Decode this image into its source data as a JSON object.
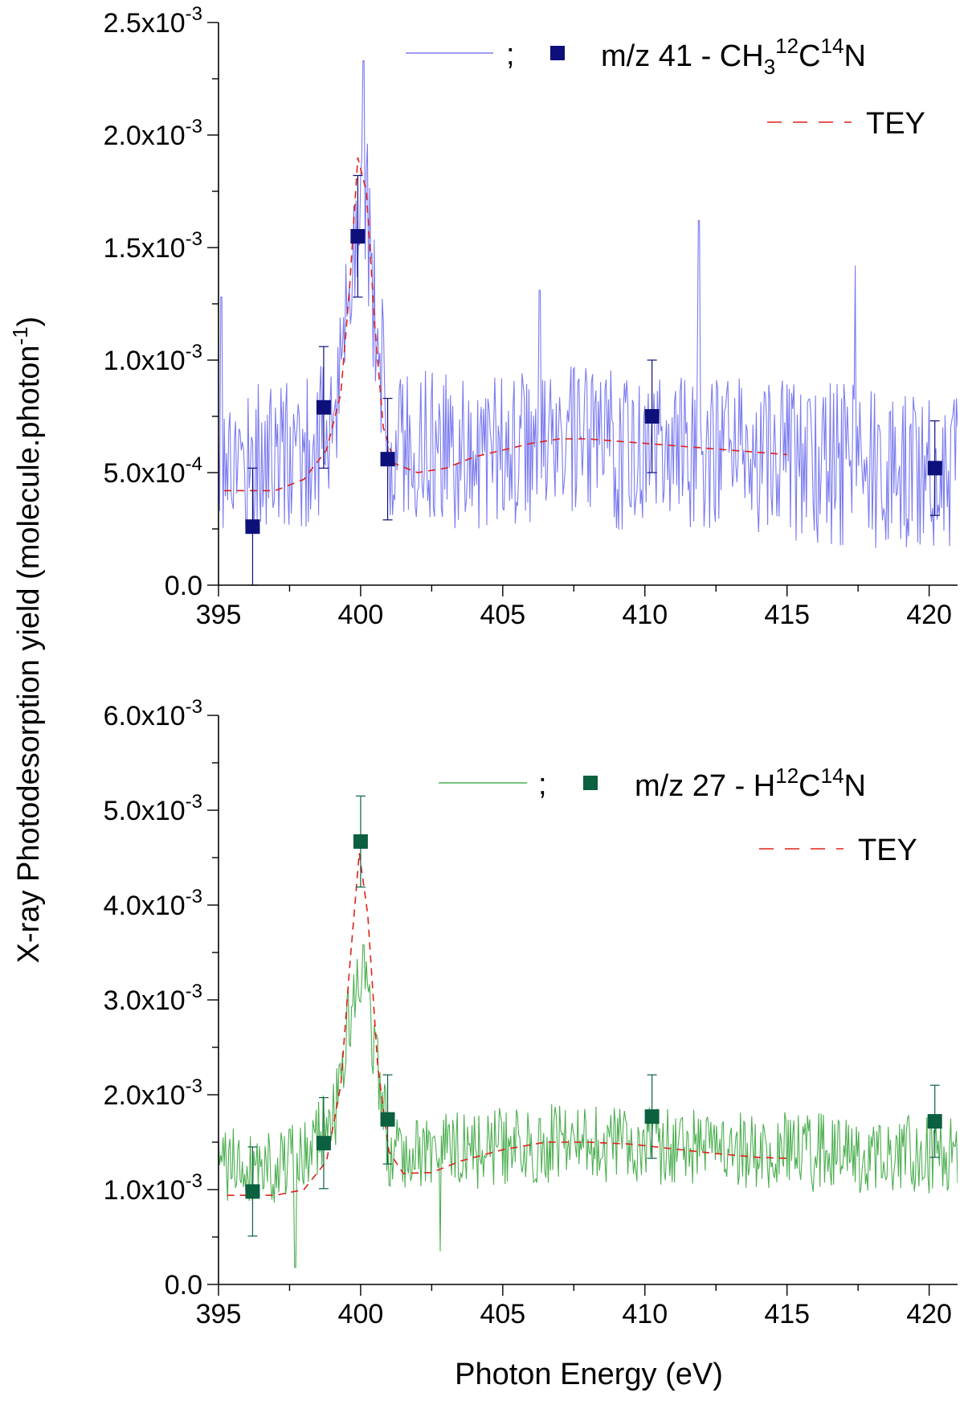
{
  "shared": {
    "ylabel": "X-ray Photodesorption yield (molecule.photon",
    "ylabel_sup": "-1",
    "ylabel_close": ")",
    "xlabel": "Photon Energy (eV)"
  },
  "chart_data": [
    {
      "type": "line",
      "xlim": [
        395,
        421
      ],
      "ylim": [
        0,
        0.0025
      ],
      "x_ticks": [
        395,
        400,
        405,
        410,
        415,
        420
      ],
      "x_tick_labels": [
        "395",
        "400",
        "405",
        "410",
        "415",
        "420"
      ],
      "y_ticks": [
        {
          "value": 0,
          "base": "0.0",
          "exp": ""
        },
        {
          "value": 0.0005,
          "base": "5.0x10",
          "exp": "-4"
        },
        {
          "value": 0.001,
          "base": "1.0x10",
          "exp": "-3"
        },
        {
          "value": 0.0015,
          "base": "1.5x10",
          "exp": "-3"
        },
        {
          "value": 0.002,
          "base": "2.0x10",
          "exp": "-3"
        },
        {
          "value": 0.0025,
          "base": "2.5x10",
          "exp": "-3"
        }
      ],
      "legend_position": "top-right",
      "legend": {
        "separator": ";",
        "parts": [
          {
            "text": "m/z 41 - CH",
            "script": ""
          },
          {
            "text": "3",
            "script": "sub"
          },
          {
            "text": "12",
            "script": "sup"
          },
          {
            "text": "C",
            "script": ""
          },
          {
            "text": "14",
            "script": "sup"
          },
          {
            "text": "N",
            "script": ""
          }
        ],
        "tey_label": "TEY"
      },
      "colors": {
        "signal_line": "#7b7bf0",
        "marker": "#0d0f7a",
        "tey": "#e0201a"
      },
      "noise_seed": 17,
      "noise_amplitude": 0.00036,
      "signal_baseline": [
        [
          395,
          0.00055
        ],
        [
          398,
          0.00058
        ],
        [
          399.2,
          0.00075
        ],
        [
          399.6,
          0.0014
        ],
        [
          400.1,
          0.0019
        ],
        [
          400.5,
          0.0012
        ],
        [
          401,
          0.00065
        ],
        [
          403,
          0.0006
        ],
        [
          407,
          0.00062
        ],
        [
          410,
          0.0006
        ],
        [
          415,
          0.00055
        ],
        [
          421,
          0.0005
        ]
      ],
      "signal_spikes": [
        [
          400.1,
          0.00233
        ],
        [
          411.9,
          0.00162
        ],
        [
          417.4,
          0.00142
        ],
        [
          395.1,
          0.00128
        ],
        [
          406.3,
          0.00131
        ]
      ],
      "tey_curve": [
        [
          395.2,
          0.00042
        ],
        [
          397,
          0.00042
        ],
        [
          398,
          0.00047
        ],
        [
          398.8,
          0.0006
        ],
        [
          399.3,
          0.00085
        ],
        [
          399.6,
          0.0013
        ],
        [
          399.9,
          0.0019
        ],
        [
          400.2,
          0.00175
        ],
        [
          400.5,
          0.00115
        ],
        [
          400.8,
          0.0007
        ],
        [
          401.2,
          0.00054
        ],
        [
          402,
          0.0005
        ],
        [
          403,
          0.00052
        ],
        [
          404,
          0.00057
        ],
        [
          405,
          0.0006
        ],
        [
          406,
          0.00063
        ],
        [
          407,
          0.00065
        ],
        [
          408,
          0.00065
        ],
        [
          409,
          0.00064
        ],
        [
          410,
          0.00063
        ],
        [
          411,
          0.00062
        ],
        [
          412,
          0.00061
        ],
        [
          413,
          0.0006
        ],
        [
          414,
          0.00059
        ],
        [
          415,
          0.00058
        ]
      ],
      "markers": [
        {
          "x": 396.2,
          "y": 0.00026,
          "err": 0.00026
        },
        {
          "x": 398.7,
          "y": 0.00079,
          "err": 0.00027
        },
        {
          "x": 399.9,
          "y": 0.00155,
          "err": 0.00027
        },
        {
          "x": 400.95,
          "y": 0.00056,
          "err": 0.00027
        },
        {
          "x": 410.25,
          "y": 0.00075,
          "err": 0.00025
        },
        {
          "x": 420.2,
          "y": 0.00052,
          "err": 0.00021
        }
      ]
    },
    {
      "type": "line",
      "xlim": [
        395,
        421
      ],
      "ylim": [
        0,
        0.006
      ],
      "x_ticks": [
        395,
        400,
        405,
        410,
        415,
        420
      ],
      "x_tick_labels": [
        "395",
        "400",
        "405",
        "410",
        "415",
        "420"
      ],
      "y_ticks": [
        {
          "value": 0,
          "base": "0.0",
          "exp": ""
        },
        {
          "value": 0.001,
          "base": "1.0x10",
          "exp": "-3"
        },
        {
          "value": 0.002,
          "base": "2.0x10",
          "exp": "-3"
        },
        {
          "value": 0.003,
          "base": "3.0x10",
          "exp": "-3"
        },
        {
          "value": 0.004,
          "base": "4.0x10",
          "exp": "-3"
        },
        {
          "value": 0.005,
          "base": "5.0x10",
          "exp": "-3"
        },
        {
          "value": 0.006,
          "base": "6.0x10",
          "exp": "-3"
        }
      ],
      "legend_position": "top-right",
      "legend": {
        "separator": ";",
        "parts": [
          {
            "text": "m/z 27 - H",
            "script": ""
          },
          {
            "text": "12",
            "script": "sup"
          },
          {
            "text": "C",
            "script": ""
          },
          {
            "text": "14",
            "script": "sup"
          },
          {
            "text": "N",
            "script": ""
          }
        ],
        "tey_label": "TEY"
      },
      "colors": {
        "signal_line": "#4caf50",
        "marker": "#0b6040",
        "tey": "#e0201a"
      },
      "noise_seed": 41,
      "noise_amplitude": 0.00042,
      "signal_baseline": [
        [
          395,
          0.00125
        ],
        [
          398,
          0.0013
        ],
        [
          399.2,
          0.0019
        ],
        [
          399.6,
          0.0028
        ],
        [
          400.1,
          0.0034
        ],
        [
          400.5,
          0.0024
        ],
        [
          401,
          0.00145
        ],
        [
          403,
          0.0014
        ],
        [
          407,
          0.0015
        ],
        [
          410,
          0.00145
        ],
        [
          415,
          0.0014
        ],
        [
          421,
          0.00135
        ]
      ],
      "signal_spikes": [
        [
          400.1,
          0.00358
        ],
        [
          397.7,
          0.00018
        ],
        [
          402.8,
          0.00035
        ]
      ],
      "tey_curve": [
        [
          395.3,
          0.00094
        ],
        [
          397,
          0.00094
        ],
        [
          398,
          0.001
        ],
        [
          398.8,
          0.0013
        ],
        [
          399.3,
          0.0021
        ],
        [
          399.6,
          0.0033
        ],
        [
          399.95,
          0.00455
        ],
        [
          400.25,
          0.0039
        ],
        [
          400.6,
          0.0023
        ],
        [
          401,
          0.0014
        ],
        [
          401.5,
          0.00117
        ],
        [
          402.5,
          0.00118
        ],
        [
          403.5,
          0.0013
        ],
        [
          405,
          0.00142
        ],
        [
          406.5,
          0.0015
        ],
        [
          408,
          0.0015
        ],
        [
          409.5,
          0.00148
        ],
        [
          411,
          0.00143
        ],
        [
          412.5,
          0.00138
        ],
        [
          414,
          0.00134
        ],
        [
          415,
          0.00133
        ]
      ],
      "markers": [
        {
          "x": 396.2,
          "y": 0.00098,
          "err": 0.00047
        },
        {
          "x": 398.7,
          "y": 0.00149,
          "err": 0.00048
        },
        {
          "x": 400,
          "y": 0.00467,
          "err": 0.00048
        },
        {
          "x": 400.95,
          "y": 0.00174,
          "err": 0.00047
        },
        {
          "x": 410.25,
          "y": 0.00177,
          "err": 0.00044
        },
        {
          "x": 420.2,
          "y": 0.00172,
          "err": 0.00038
        }
      ]
    }
  ]
}
